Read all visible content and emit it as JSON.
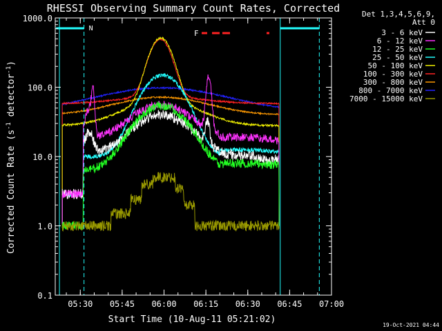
{
  "chart_data": {
    "type": "line",
    "title": "RHESSI Observing Summary Count Rates, Corrected",
    "xlabel": "Start Time (10-Aug-11 05:21:02)",
    "ylabel_main": "Corrected Count Rate (s",
    "ylabel_sup1": "-1",
    "ylabel_mid": " detector",
    "ylabel_sup2": "-1",
    "ylabel_end": ")",
    "yscale": "log",
    "ylim": [
      0.1,
      1000
    ],
    "xlim_minutes": [
      0,
      98.97
    ],
    "x_ticks": [
      {
        "label": "05:30",
        "min": 8.97
      },
      {
        "label": "05:45",
        "min": 23.97
      },
      {
        "label": "06:00",
        "min": 38.97
      },
      {
        "label": "06:15",
        "min": 53.97
      },
      {
        "label": "06:30",
        "min": 68.97
      },
      {
        "label": "06:45",
        "min": 83.97
      },
      {
        "label": "07:00",
        "min": 98.97
      }
    ],
    "y_ticks": [
      "0.1",
      "1.0",
      "10.0",
      "100.0",
      "1000.0"
    ],
    "legend_header": [
      "Det 1,3,4,5,6,9,",
      "Att 0"
    ],
    "series": [
      {
        "name": "3 - 6 keV",
        "color": "#ffffff"
      },
      {
        "name": "6 - 12 keV",
        "color": "#ff33ff"
      },
      {
        "name": "12 - 25 keV",
        "color": "#22ff22"
      },
      {
        "name": "25 - 50 keV",
        "color": "#22ffff"
      },
      {
        "name": "50 - 100 keV",
        "color": "#eeee00"
      },
      {
        "name": "100 - 300 keV",
        "color": "#ff2222"
      },
      {
        "name": "300 - 800 keV",
        "color": "#ff9900"
      },
      {
        "name": "800 - 7000 keV",
        "color": "#2222ff"
      },
      {
        "name": "7000 - 15000 keV",
        "color": "#999900"
      }
    ],
    "flag_labels": {
      "night": "N",
      "flare": "F"
    },
    "footer_date": "19-Oct-2021 04:44"
  }
}
